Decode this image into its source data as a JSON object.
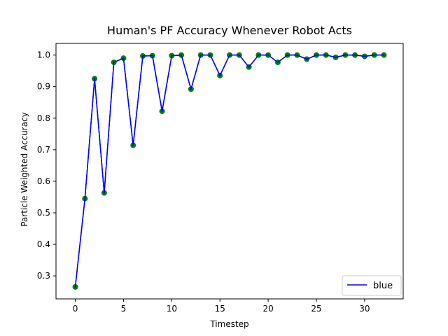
{
  "chart_data": {
    "type": "line",
    "title": "Human's PF Accuracy Whenever Robot Acts",
    "xlabel": "Timestep",
    "ylabel": "Particle Weighted Accuracy",
    "xlim": [
      -2,
      34
    ],
    "ylim": [
      0.227,
      1.037
    ],
    "xticks": [
      0,
      5,
      10,
      15,
      20,
      25,
      30
    ],
    "yticks": [
      0.3,
      0.4,
      0.5,
      0.6,
      0.7,
      0.8,
      0.9,
      1.0
    ],
    "ytick_labels": [
      "0.3",
      "0.4",
      "0.5",
      "0.6",
      "0.7",
      "0.8",
      "0.9",
      "1.0"
    ],
    "grid": false,
    "legend_position": "bottom-right",
    "series": [
      {
        "name": "blue",
        "line_color": "#0000ff",
        "marker_color": "#008000",
        "x": [
          0,
          1,
          2,
          3,
          4,
          5,
          6,
          7,
          8,
          9,
          10,
          11,
          12,
          13,
          14,
          15,
          16,
          17,
          18,
          19,
          20,
          21,
          22,
          23,
          24,
          25,
          26,
          27,
          28,
          29,
          30,
          31,
          32
        ],
        "y": [
          0.265,
          0.545,
          0.925,
          0.563,
          0.977,
          0.99,
          0.714,
          0.997,
          0.998,
          0.822,
          0.998,
          1.0,
          0.892,
          1.0,
          1.0,
          0.935,
          1.0,
          1.0,
          0.962,
          1.0,
          1.0,
          0.977,
          1.0,
          1.0,
          0.987,
          1.0,
          1.0,
          0.993,
          1.0,
          1.0,
          0.996,
          1.0,
          1.0
        ]
      }
    ]
  }
}
